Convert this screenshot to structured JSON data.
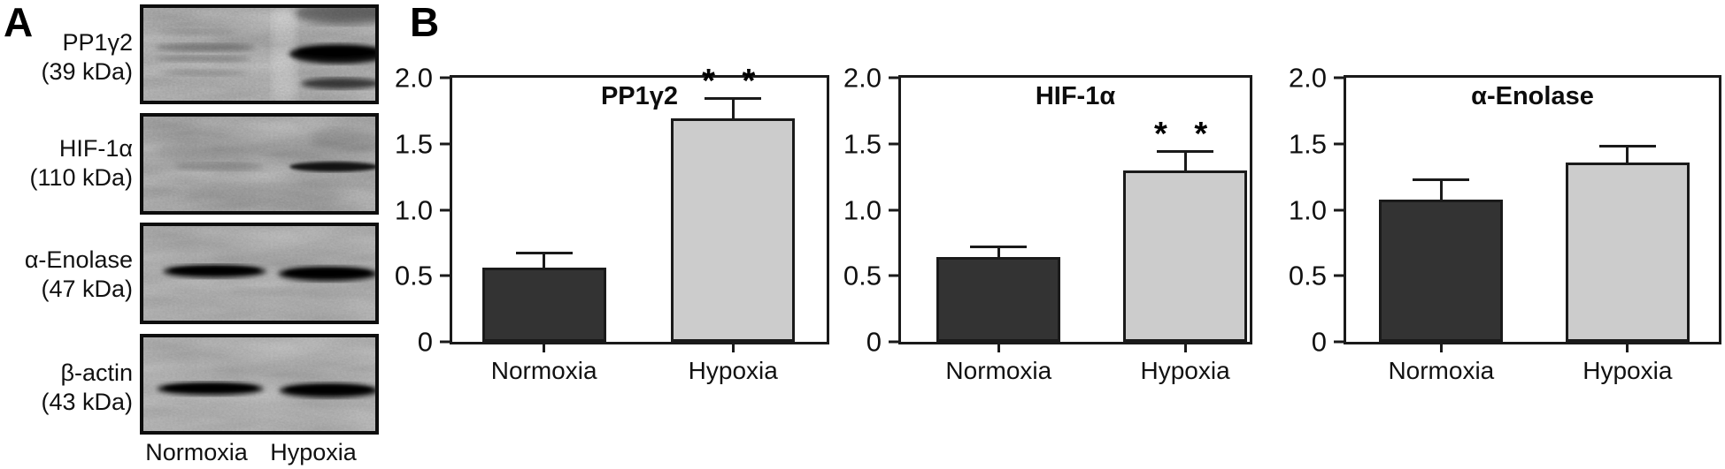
{
  "figure": {
    "panel_a": {
      "label": "A",
      "blots": [
        {
          "protein": "PP1γ2",
          "weight": "(39 kDa)"
        },
        {
          "protein": "HIF-1α",
          "weight": "(110 kDa)"
        },
        {
          "protein": "α-Enolase",
          "weight": "(47 kDa)"
        },
        {
          "protein": "β-actin",
          "weight": "(43 kDa)"
        }
      ],
      "lane_labels": [
        "Normoxia",
        "Hypoxia"
      ]
    },
    "panel_b": {
      "label": "B"
    }
  },
  "colors": {
    "normoxia_bar": "#333333",
    "hypoxia_bar": "#cccccc",
    "axis": "#1a1a1a"
  },
  "chart_data": [
    {
      "type": "bar",
      "title": "PP1γ2",
      "categories": [
        "Normoxia",
        "Hypoxia"
      ],
      "values": [
        0.56,
        1.69
      ],
      "errors_upper": [
        0.1,
        0.14
      ],
      "bar_colors": [
        "#333333",
        "#cccccc"
      ],
      "significance": {
        "label": "* *",
        "category": "Hypoxia"
      },
      "ylim": [
        0,
        2.0
      ],
      "yticks": [
        {
          "v": 0,
          "label": "0"
        },
        {
          "v": 0.5,
          "label": "0.5"
        },
        {
          "v": 1.0,
          "label": "1.0"
        },
        {
          "v": 1.5,
          "label": "1.5"
        },
        {
          "v": 2.0,
          "label": "2.0"
        }
      ],
      "legend": null,
      "grid": false,
      "frame": "box"
    },
    {
      "type": "bar",
      "title": "HIF-1α",
      "categories": [
        "Normoxia",
        "Hypoxia"
      ],
      "values": [
        0.64,
        1.3
      ],
      "errors_upper": [
        0.07,
        0.13
      ],
      "bar_colors": [
        "#333333",
        "#cccccc"
      ],
      "significance": {
        "label": "* *",
        "category": "Hypoxia"
      },
      "ylim": [
        0,
        2.0
      ],
      "yticks": [
        {
          "v": 0,
          "label": "0"
        },
        {
          "v": 0.5,
          "label": "0.5"
        },
        {
          "v": 1.0,
          "label": "1.0"
        },
        {
          "v": 1.5,
          "label": "1.5"
        },
        {
          "v": 2.0,
          "label": "2.0"
        }
      ],
      "legend": null,
      "grid": false,
      "frame": "box"
    },
    {
      "type": "bar",
      "title": "α-Enolase",
      "categories": [
        "Normoxia",
        "Hypoxia"
      ],
      "values": [
        1.08,
        1.36
      ],
      "errors_upper": [
        0.14,
        0.11
      ],
      "bar_colors": [
        "#333333",
        "#cccccc"
      ],
      "significance": null,
      "ylim": [
        0,
        2.0
      ],
      "yticks": [
        {
          "v": 0,
          "label": "0"
        },
        {
          "v": 0.5,
          "label": "0.5"
        },
        {
          "v": 1.0,
          "label": "1.0"
        },
        {
          "v": 1.5,
          "label": "1.5"
        },
        {
          "v": 2.0,
          "label": "2.0"
        }
      ],
      "legend": null,
      "grid": false,
      "frame": "box"
    }
  ]
}
